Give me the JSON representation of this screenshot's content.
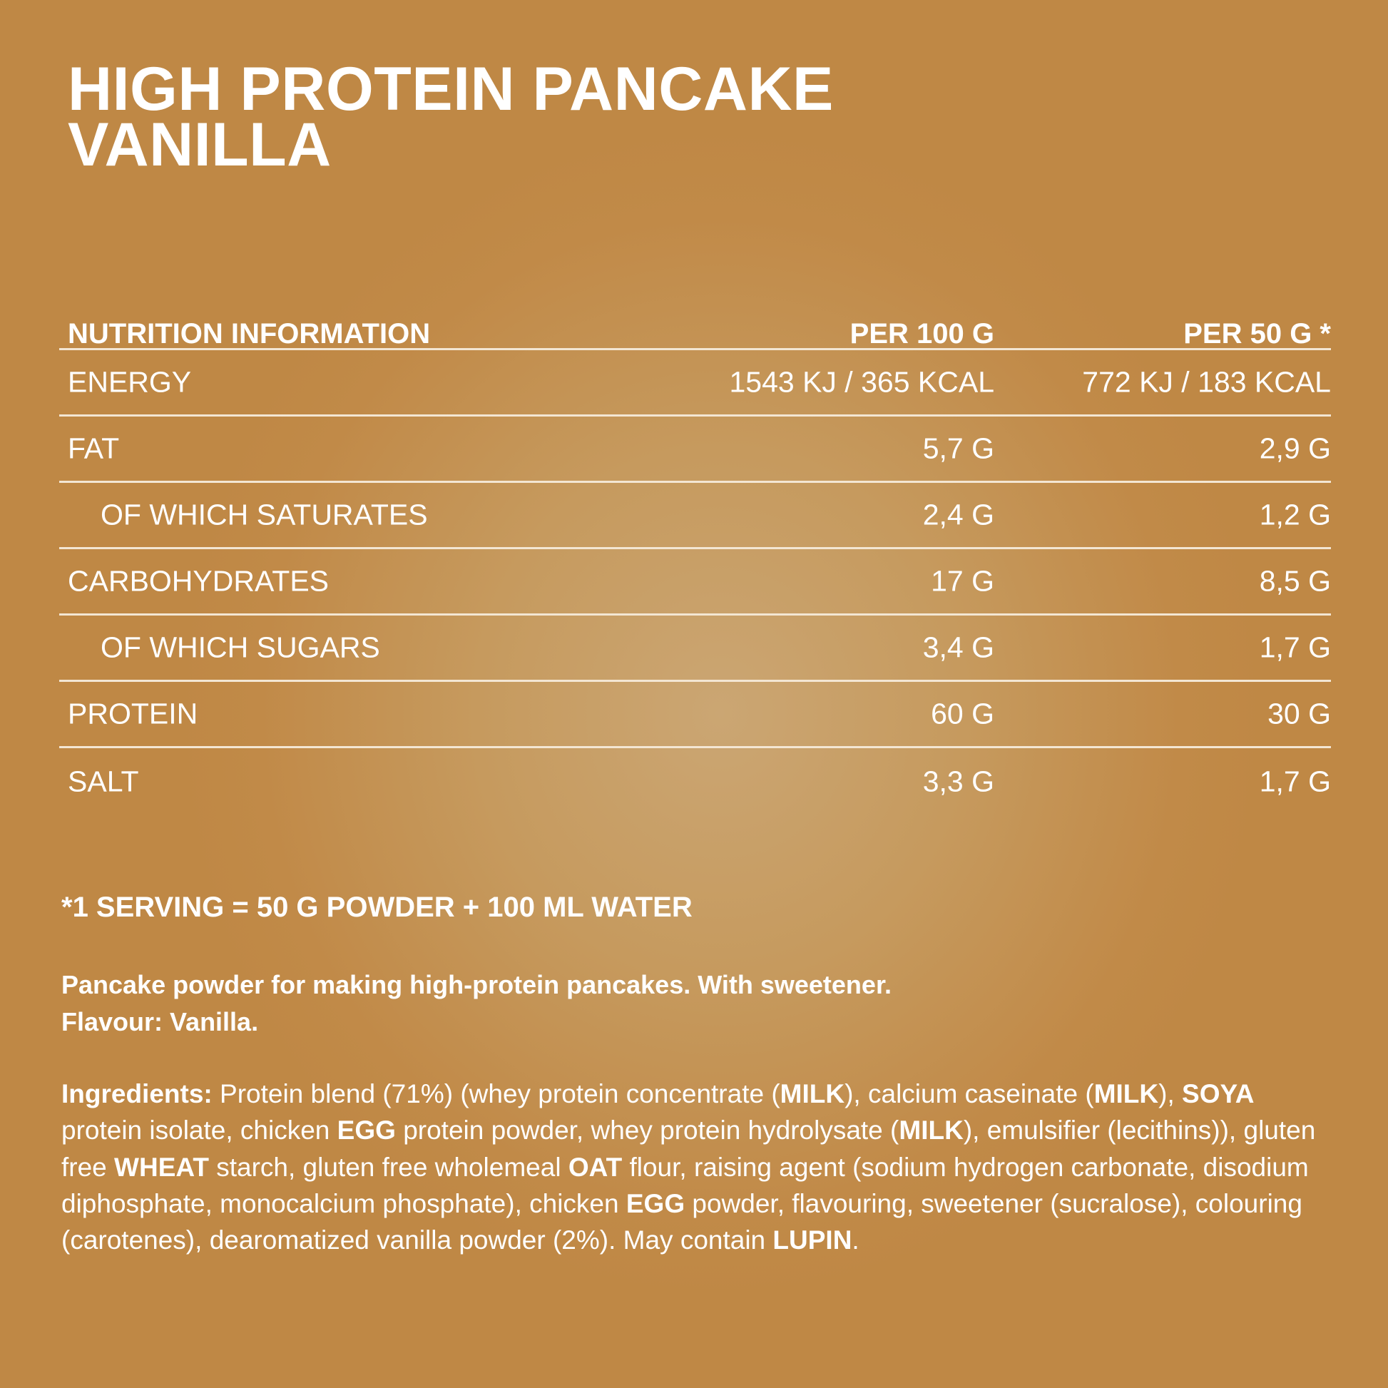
{
  "title": {
    "line1": "HIGH PROTEIN PANCAKE",
    "line2": "VANILLA"
  },
  "nutrition": {
    "headers": [
      "NUTRITION INFORMATION",
      "PER 100 G",
      "PER 50 G *"
    ],
    "rows": [
      {
        "label": "ENERGY",
        "per100": "1543 KJ / 365 KCAL",
        "per50": "772 KJ / 183 KCAL",
        "indent": false
      },
      {
        "label": "FAT",
        "per100": "5,7 G",
        "per50": "2,9 G",
        "indent": false
      },
      {
        "label": "OF WHICH SATURATES",
        "per100": "2,4 G",
        "per50": "1,2 G",
        "indent": true
      },
      {
        "label": "CARBOHYDRATES",
        "per100": "17 G",
        "per50": "8,5 G",
        "indent": false
      },
      {
        "label": "OF WHICH SUGARS",
        "per100": "3,4 G",
        "per50": "1,7 G",
        "indent": true
      },
      {
        "label": "PROTEIN",
        "per100": "60 G",
        "per50": "30 G",
        "indent": false
      },
      {
        "label": "SALT",
        "per100": "3,3 G",
        "per50": "1,7 G",
        "indent": false
      }
    ]
  },
  "serving_note": "*1 SERVING = 50 G POWDER + 100 ML WATER",
  "description": {
    "line1": "Pancake powder for making high-protein pancakes. With sweetener.",
    "line2": "Flavour: Vanilla."
  },
  "ingredients": {
    "label": "Ingredients:",
    "segments": [
      {
        "t": " Protein blend (71%) (whey protein concentrate (",
        "b": false
      },
      {
        "t": "MILK",
        "b": true
      },
      {
        "t": "), calcium caseinate (",
        "b": false
      },
      {
        "t": "MILK",
        "b": true
      },
      {
        "t": "), ",
        "b": false
      },
      {
        "t": "SOYA",
        "b": true
      },
      {
        "t": " protein isolate, chicken ",
        "b": false
      },
      {
        "t": "EGG",
        "b": true
      },
      {
        "t": " protein powder, whey protein hydrolysate (",
        "b": false
      },
      {
        "t": "MILK",
        "b": true
      },
      {
        "t": "), emulsifier (lecithins)), gluten free ",
        "b": false
      },
      {
        "t": "WHEAT",
        "b": true
      },
      {
        "t": " starch, gluten free wholemeal ",
        "b": false
      },
      {
        "t": "OAT",
        "b": true
      },
      {
        "t": " flour, raising agent (sodium hydrogen carbonate, disodium diphosphate, monocalcium phosphate), chicken ",
        "b": false
      },
      {
        "t": "EGG",
        "b": true
      },
      {
        "t": " powder, flavouring, sweetener (sucralose), colouring (carotenes), dearomatized vanilla powder (2%). May contain ",
        "b": false
      },
      {
        "t": "LUPIN",
        "b": true
      },
      {
        "t": ".",
        "b": false
      }
    ]
  },
  "colors": {
    "background_center": "#cba673",
    "background_edge": "#bf8845",
    "text": "#ffffff"
  }
}
